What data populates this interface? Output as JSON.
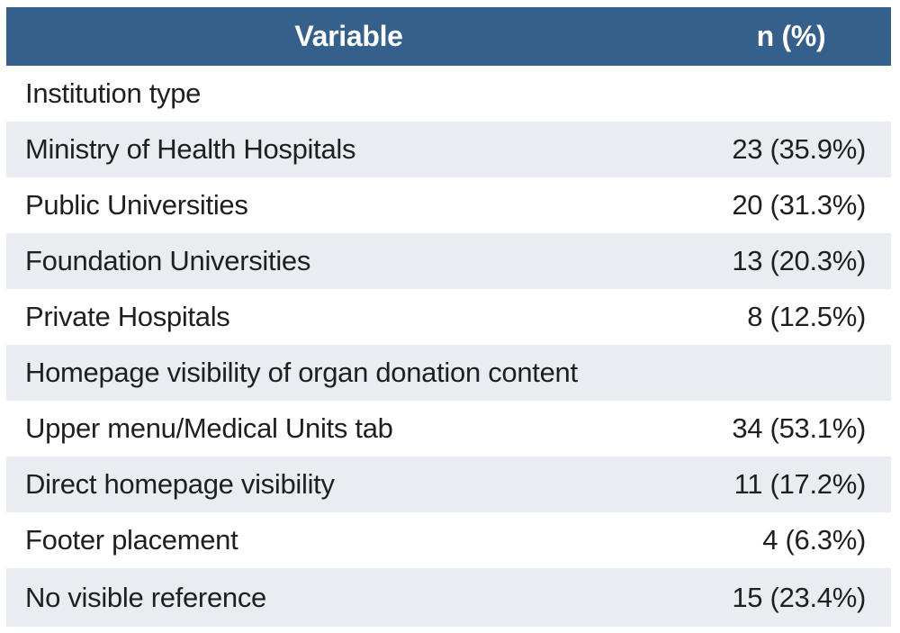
{
  "table": {
    "header": {
      "variable": "Variable",
      "n_pct": "n (%)"
    },
    "rows": [
      {
        "label": "Institution type",
        "value": "",
        "section": true
      },
      {
        "label": "Ministry of Health Hospitals",
        "value": "23 (35.9%)",
        "section": false
      },
      {
        "label": "Public Universities",
        "value": "20 (31.3%)",
        "section": false
      },
      {
        "label": "Foundation Universities",
        "value": "13 (20.3%)",
        "section": false
      },
      {
        "label": "Private Hospitals",
        "value": "8 (12.5%)",
        "section": false
      },
      {
        "label": "Homepage visibility of organ donation content",
        "value": "",
        "section": true
      },
      {
        "label": "Upper menu/Medical Units tab",
        "value": "34 (53.1%)",
        "section": false
      },
      {
        "label": "Direct homepage visibility",
        "value": "11 (17.2%)",
        "section": false
      },
      {
        "label": "Footer placement",
        "value": "4 (6.3%)",
        "section": false
      },
      {
        "label": "No visible reference",
        "value": "15 (23.4%)",
        "section": false
      }
    ],
    "colors": {
      "header_bg": "#36608c",
      "header_text": "#ffffff",
      "row_alt_bg": "#e9ecf0",
      "row_bg": "#ffffff",
      "body_text": "#1f1f1f"
    }
  },
  "chart_data": {
    "type": "table",
    "title": "",
    "columns": [
      "Variable",
      "n (%)"
    ],
    "groups": [
      {
        "section": "Institution type",
        "items": [
          {
            "label": "Ministry of Health Hospitals",
            "n": 23,
            "pct": 35.9
          },
          {
            "label": "Public Universities",
            "n": 20,
            "pct": 31.3
          },
          {
            "label": "Foundation Universities",
            "n": 13,
            "pct": 20.3
          },
          {
            "label": "Private Hospitals",
            "n": 8,
            "pct": 12.5
          }
        ]
      },
      {
        "section": "Homepage visibility of organ donation content",
        "items": [
          {
            "label": "Upper menu/Medical Units tab",
            "n": 34,
            "pct": 53.1
          },
          {
            "label": "Direct homepage visibility",
            "n": 11,
            "pct": 17.2
          },
          {
            "label": "Footer placement",
            "n": 4,
            "pct": 6.3
          },
          {
            "label": "No visible reference",
            "n": 15,
            "pct": 23.4
          }
        ]
      }
    ],
    "layout": {
      "header_style": "solid-blue-bar",
      "row_striping": "alternating starting white",
      "value_alignment": "right",
      "label_alignment": "left"
    }
  }
}
